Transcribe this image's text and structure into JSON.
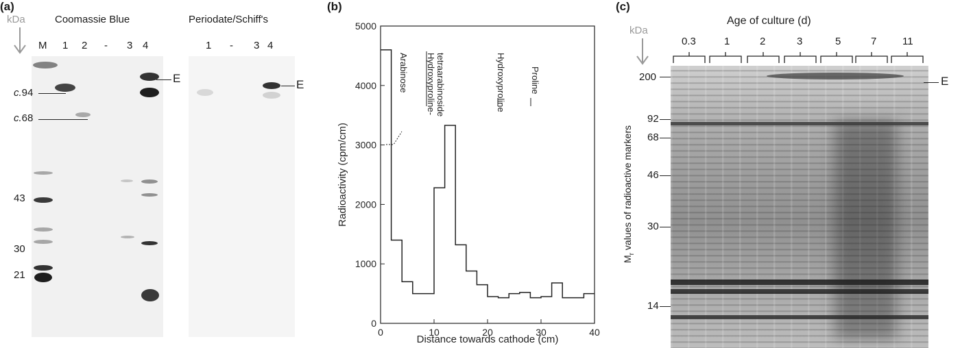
{
  "panel_a": {
    "label": "(a)",
    "kda": "kDa",
    "left_title": "Coomassie Blue",
    "right_title": "Periodate/Schiff's",
    "left_lanes": [
      "M",
      "1",
      "2",
      "-",
      "3",
      "4"
    ],
    "right_lanes": [
      "1",
      "-",
      "3",
      "4"
    ],
    "marker_c94_prefix": "c.",
    "marker_c94_value": "94",
    "marker_c68_prefix": "c.",
    "marker_c68_value": "68",
    "markers": [
      "43",
      "30",
      "21"
    ],
    "e_left": "E",
    "e_right": "E"
  },
  "panel_b": {
    "label": "(b)",
    "annotations": {
      "arabinose": "Arabinose",
      "hyp_line1": "Hydroxyproline-",
      "hyp_line2": "tetraarabinoside",
      "hydroxyproline": "Hydroxyproline",
      "proline": "Proline"
    }
  },
  "panel_c": {
    "label": "(c)",
    "title": "Age of culture (d)",
    "kda": "kDa",
    "ages": [
      "0.3",
      "1",
      "2",
      "3",
      "5",
      "7",
      "11"
    ],
    "markers": [
      "200",
      "92",
      "68",
      "46",
      "30",
      "14"
    ],
    "ylabel_main": "M",
    "ylabel_sub": "r",
    "ylabel_rest": " values of radioactive markers",
    "e_label": "E"
  },
  "chart_data": {
    "type": "line",
    "title": "",
    "xlabel": "Distance towards cathode (cm)",
    "ylabel": "Radioactivity (cpm/cm)",
    "xlim": [
      0,
      40
    ],
    "ylim": [
      0,
      5000
    ],
    "xticks": [
      0,
      10,
      20,
      30,
      40
    ],
    "yticks": [
      0,
      1000,
      2000,
      3000,
      4000,
      5000
    ],
    "step": true,
    "x": [
      0,
      2,
      4,
      6,
      8,
      10,
      12,
      14,
      16,
      18,
      20,
      22,
      24,
      26,
      28,
      30,
      32,
      34,
      36,
      38,
      40
    ],
    "y": [
      4600,
      1400,
      700,
      500,
      500,
      2280,
      3330,
      1320,
      880,
      650,
      450,
      430,
      500,
      520,
      430,
      450,
      680,
      430,
      430,
      500,
      500
    ]
  }
}
